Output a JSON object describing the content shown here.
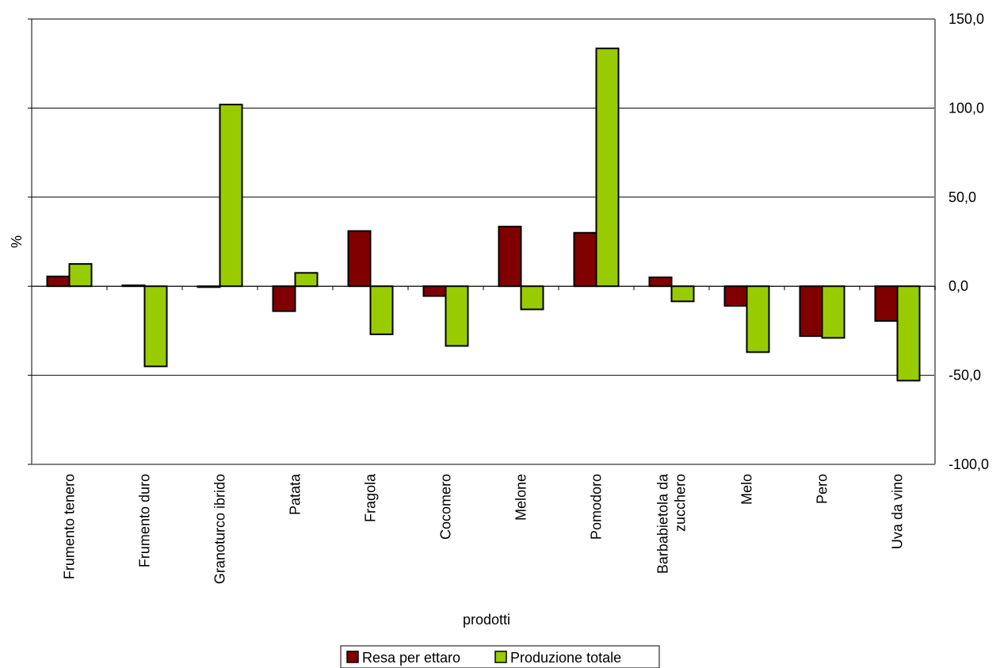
{
  "chart_data": {
    "type": "bar",
    "title": "",
    "xlabel": "prodotti",
    "ylabel": "%",
    "ylim": [
      -100,
      150
    ],
    "ytick_values": [
      -100,
      -50,
      0,
      50,
      100,
      150
    ],
    "ytick_labels": [
      "-100,0",
      "-50,0",
      "0,0",
      "50,0",
      "100,0",
      "150,0"
    ],
    "categories": [
      "Frumento tenero",
      "Frumento duro",
      "Granoturco ibrido",
      "Patata",
      "Fragola",
      "Cocomero",
      "Melone",
      "Pomodoro",
      "Barbabietola da zucchero",
      "Melo",
      "Pero",
      "Uva da vino"
    ],
    "category_label_lines": [
      [
        "Frumento tenero"
      ],
      [
        "Frumento duro"
      ],
      [
        "Granoturco ibrido"
      ],
      [
        "Patata"
      ],
      [
        "Fragola"
      ],
      [
        "Cocomero"
      ],
      [
        "Melone"
      ],
      [
        "Pomodoro"
      ],
      [
        "Barbabietola da",
        "zucchero"
      ],
      [
        "Melo"
      ],
      [
        "Pero"
      ],
      [
        "Uva da vino"
      ]
    ],
    "series": [
      {
        "name": "Resa per ettaro",
        "color": "#800000",
        "values": [
          5.5,
          0.5,
          -0.5,
          -14,
          31,
          -5.5,
          33.5,
          30,
          5,
          -11,
          -28,
          -19.5
        ]
      },
      {
        "name": "Produzione totale",
        "color": "#99cc00",
        "values": [
          12.5,
          -45,
          102,
          7.5,
          -27,
          -33.5,
          -13,
          133.5,
          -8.5,
          -37,
          -29,
          -53
        ]
      }
    ],
    "grid": true,
    "legend_position": "bottom-center"
  }
}
